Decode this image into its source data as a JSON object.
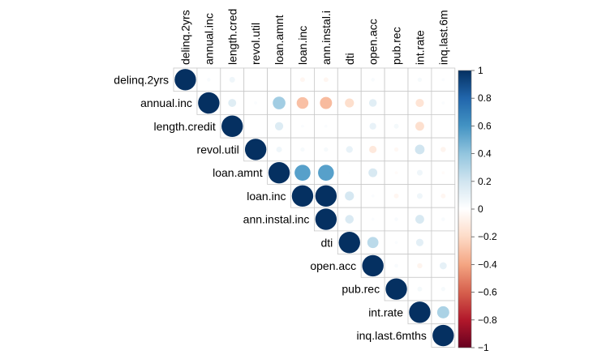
{
  "chart_data": {
    "type": "heatmap",
    "subtype": "correlation-upper-circle",
    "variables": [
      "delinq.2yrs",
      "annual.inc",
      "length.credit",
      "revol.util",
      "loan.amnt",
      "loan.inc",
      "ann.instal.inc",
      "dti",
      "open.acc",
      "pub.rec",
      "int.rate",
      "inq.last.6mths"
    ],
    "column_labels": [
      "delinq.2yrs",
      "annual.inc",
      "length.cred",
      "revol.util",
      "loan.amnt",
      "loan.inc",
      "ann.instal.i",
      "dti",
      "open.acc",
      "pub.rec",
      "int.rate",
      "inq.last.6m"
    ],
    "matrix": [
      [
        1.0,
        0.03,
        0.07,
        0.0,
        0.0,
        -0.05,
        -0.05,
        0.0,
        0.03,
        0.0,
        0.04,
        0.02
      ],
      [
        null,
        1.0,
        0.14,
        0.02,
        0.35,
        -0.3,
        -0.32,
        -0.18,
        0.13,
        0.0,
        -0.15,
        0.02
      ],
      [
        null,
        null,
        1.0,
        0.0,
        0.15,
        0.02,
        0.02,
        0.0,
        0.1,
        0.05,
        -0.17,
        0.0
      ],
      [
        null,
        null,
        null,
        1.0,
        0.07,
        0.04,
        0.04,
        0.1,
        -0.12,
        -0.04,
        0.2,
        -0.06
      ],
      [
        null,
        null,
        null,
        null,
        1.0,
        0.55,
        0.55,
        0.01,
        0.17,
        -0.02,
        0.07,
        -0.02
      ],
      [
        null,
        null,
        null,
        null,
        null,
        1.0,
        1.0,
        0.18,
        0.02,
        -0.05,
        0.07,
        -0.05
      ],
      [
        null,
        null,
        null,
        null,
        null,
        null,
        1.0,
        0.16,
        0.02,
        0.03,
        0.17,
        0.03
      ],
      [
        null,
        null,
        null,
        null,
        null,
        null,
        null,
        1.0,
        0.27,
        0.02,
        0.12,
        0.0
      ],
      [
        null,
        null,
        null,
        null,
        null,
        null,
        null,
        null,
        1.0,
        0.03,
        -0.06,
        0.11
      ],
      [
        null,
        null,
        null,
        null,
        null,
        null,
        null,
        null,
        null,
        1.0,
        0.05,
        0.04
      ],
      [
        null,
        null,
        null,
        null,
        null,
        null,
        null,
        null,
        null,
        null,
        1.0,
        0.32
      ],
      [
        null,
        null,
        null,
        null,
        null,
        null,
        null,
        null,
        null,
        null,
        null,
        1.0
      ]
    ],
    "color_scale": {
      "min": -1,
      "max": 1,
      "ticks": [
        "1",
        "0.8",
        "0.6",
        "0.4",
        "0.2",
        "0",
        "−0.2",
        "−0.4",
        "−0.6",
        "−0.8",
        "−1"
      ],
      "colors": [
        "#67001F",
        "#B2182B",
        "#D6604D",
        "#F4A582",
        "#FDDBC7",
        "#FFFFFF",
        "#D1E5F0",
        "#92C5DE",
        "#4393C3",
        "#2166AC",
        "#053061"
      ]
    },
    "grid": true,
    "legend": "right"
  }
}
